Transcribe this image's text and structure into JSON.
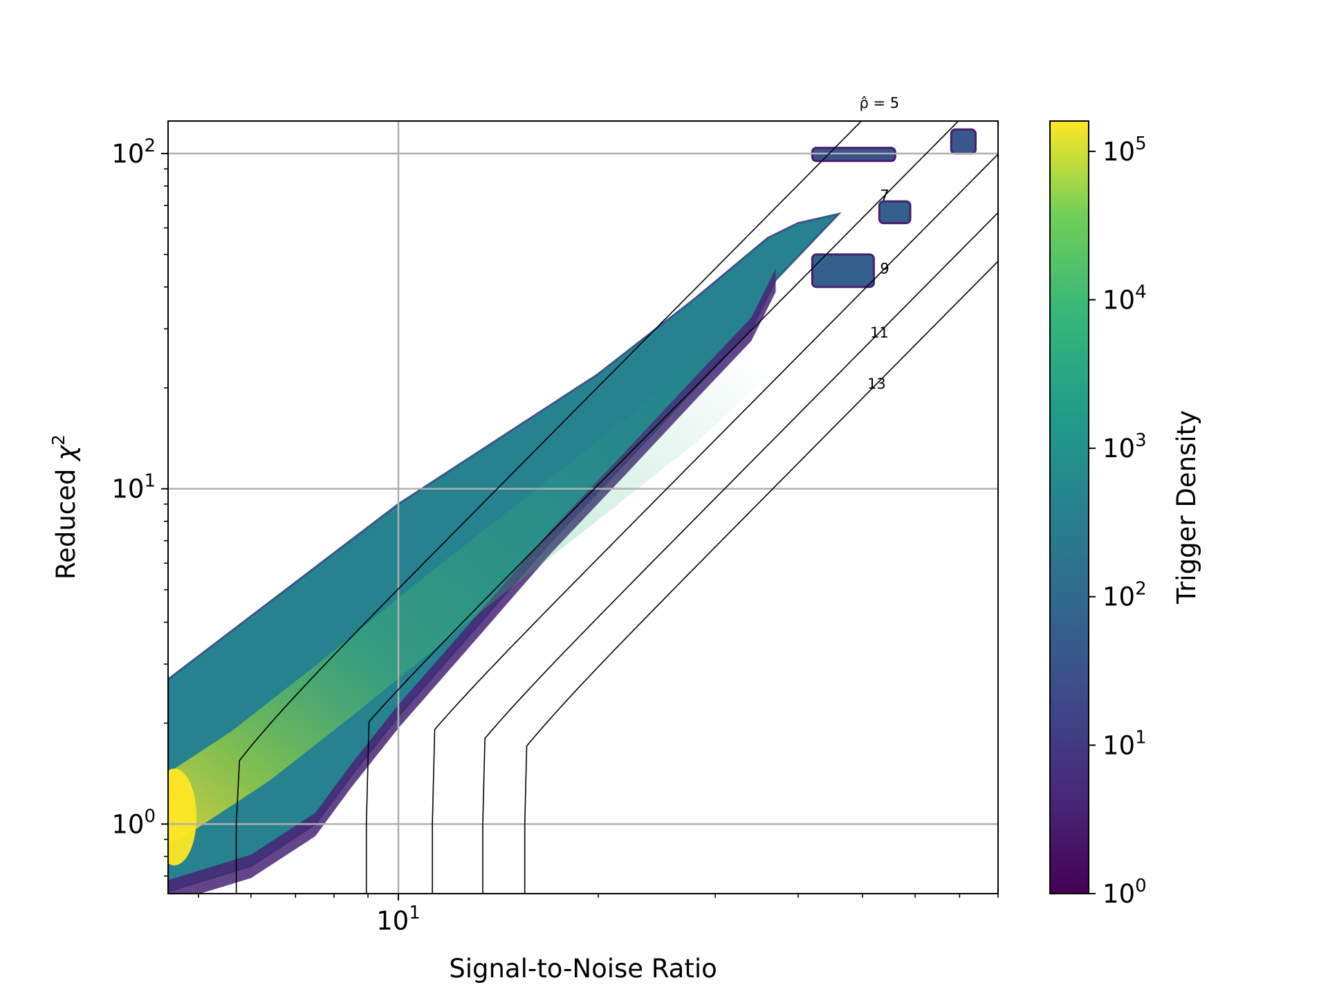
{
  "chart_data": {
    "type": "heatmap",
    "subtype": "hexbin",
    "title": "",
    "xlabel": "Signal-to-Noise Ratio",
    "ylabel_prefix": "Reduced ",
    "ylabel_symbol": "χ",
    "ylabel_sup": "2",
    "x_scale": "log",
    "y_scale": "log",
    "xlim": [
      4.5,
      80
    ],
    "ylim": [
      0.62,
      125
    ],
    "grid": true,
    "x_major_ticks": [
      {
        "value": 10,
        "base": "10",
        "exp": "1"
      }
    ],
    "x_minor_ticks": [
      5,
      6,
      7,
      8,
      9,
      20,
      30,
      40,
      50,
      60,
      70,
      80
    ],
    "y_major_ticks": [
      {
        "value": 1,
        "base": "10",
        "exp": "0"
      },
      {
        "value": 10,
        "base": "10",
        "exp": "1"
      },
      {
        "value": 100,
        "base": "10",
        "exp": "2"
      }
    ],
    "colorbar": {
      "label": "Trigger Density",
      "colormap": "viridis",
      "scale": "log",
      "range": [
        1,
        160000
      ],
      "ticks": [
        {
          "value": 1,
          "base": "10",
          "exp": "0"
        },
        {
          "value": 10,
          "base": "10",
          "exp": "1"
        },
        {
          "value": 100,
          "base": "10",
          "exp": "2"
        },
        {
          "value": 1000,
          "base": "10",
          "exp": "3"
        },
        {
          "value": 10000,
          "base": "10",
          "exp": "4"
        },
        {
          "value": 100000,
          "base": "10",
          "exp": "5"
        }
      ]
    },
    "density_band": {
      "upper_edge": [
        [
          4.5,
          2.7
        ],
        [
          10,
          9.0
        ],
        [
          20,
          22
        ],
        [
          28,
          37
        ],
        [
          36,
          56
        ],
        [
          40,
          62
        ],
        [
          46,
          66
        ]
      ],
      "lower_edge": [
        [
          4.5,
          0.63
        ],
        [
          6,
          0.75
        ],
        [
          7.5,
          1.0
        ],
        [
          8.5,
          1.4
        ],
        [
          10,
          2.1
        ],
        [
          13,
          3.8
        ],
        [
          17,
          7.0
        ],
        [
          22,
          12
        ],
        [
          28,
          20
        ],
        [
          34,
          30
        ],
        [
          37,
          42
        ]
      ],
      "peak": {
        "x": 4.6,
        "y": 1.05,
        "density": 160000
      },
      "peak_ridge": [
        [
          4.5,
          1.1
        ],
        [
          6,
          1.6
        ],
        [
          8,
          2.5
        ],
        [
          12,
          4.8
        ],
        [
          18,
          9
        ],
        [
          26,
          16
        ],
        [
          34,
          26
        ]
      ]
    },
    "outlier_clusters": [
      {
        "x": [
          42,
          56
        ],
        "y": [
          95,
          104
        ],
        "density": 30
      },
      {
        "x": [
          68,
          74
        ],
        "y": [
          100,
          118
        ],
        "density": 40
      },
      {
        "x": [
          53,
          59
        ],
        "y": [
          62,
          72
        ],
        "density": 60
      },
      {
        "x": [
          42,
          52
        ],
        "y": [
          40,
          50
        ],
        "density": 60
      }
    ],
    "contours": {
      "statistic_symbol": "ρ̂",
      "levels": [
        {
          "value": 5,
          "label": "ρ̂ = 5",
          "x_start": 5.7
        },
        {
          "value": 7,
          "label": "7",
          "x_start": 8.95
        },
        {
          "value": 9,
          "label": "9",
          "x_start": 11.25
        },
        {
          "value": 11,
          "label": "11",
          "x_start": 13.4
        },
        {
          "value": 13,
          "label": "13",
          "x_start": 15.5
        }
      ]
    }
  }
}
